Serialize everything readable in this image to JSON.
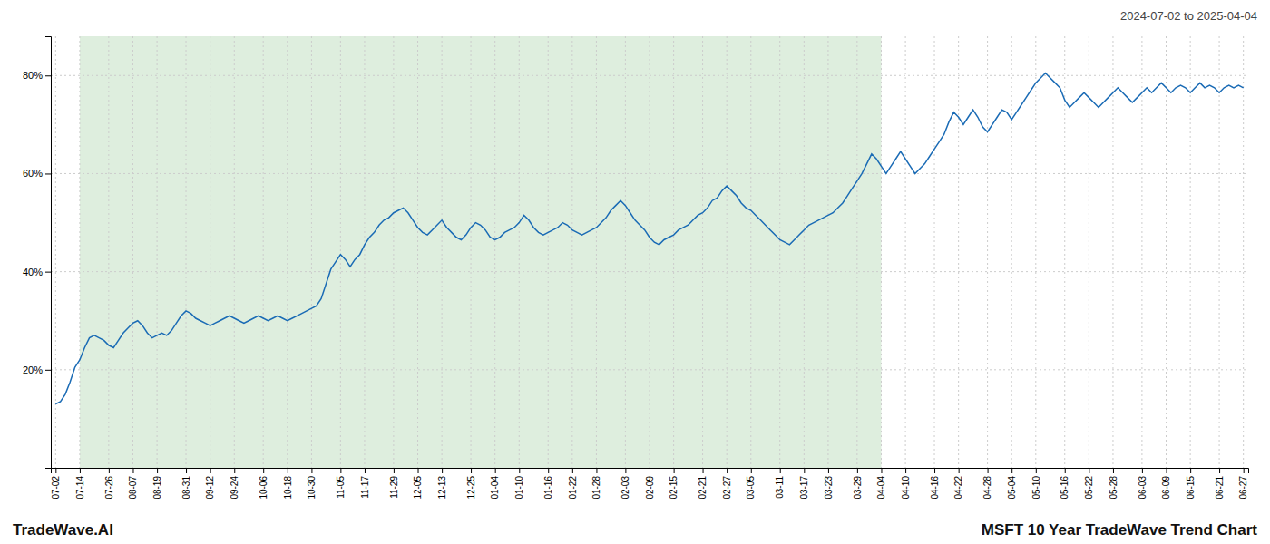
{
  "chart_data": {
    "type": "line",
    "title": "MSFT 10 Year TradeWave Trend Chart",
    "subtitle": "2024-07-02 to 2025-04-04",
    "annotations": [
      "TradeWave.AI"
    ],
    "color": "#1a6bb5",
    "grid": true,
    "ylim": [
      0,
      88
    ],
    "yticks": [
      {
        "value": 20,
        "label": "20%"
      },
      {
        "value": 40,
        "label": "40%"
      },
      {
        "value": 60,
        "label": "60%"
      },
      {
        "value": 80,
        "label": "80%"
      }
    ],
    "shaded_range": {
      "start": "07-14",
      "end": "04-04",
      "color": "#deeede"
    },
    "categories": [
      "07-02",
      null,
      null,
      null,
      null,
      "07-14",
      null,
      null,
      null,
      null,
      null,
      "07-26",
      null,
      null,
      null,
      null,
      "08-07",
      null,
      null,
      null,
      null,
      "08-19",
      null,
      null,
      null,
      null,
      null,
      "08-31",
      null,
      null,
      null,
      null,
      "09-12",
      null,
      null,
      null,
      null,
      "09-24",
      null,
      null,
      null,
      null,
      null,
      "10-06",
      null,
      null,
      null,
      null,
      "10-18",
      null,
      null,
      null,
      null,
      "10-30",
      null,
      null,
      null,
      null,
      null,
      "11-05",
      null,
      null,
      null,
      null,
      "11-17",
      null,
      null,
      null,
      null,
      null,
      "11-29",
      null,
      null,
      null,
      null,
      "12-05",
      null,
      null,
      null,
      null,
      "12-13",
      null,
      null,
      null,
      null,
      null,
      "12-25",
      null,
      null,
      null,
      null,
      "01-04",
      null,
      null,
      null,
      null,
      "01-10",
      null,
      null,
      null,
      null,
      null,
      "01-16",
      null,
      null,
      null,
      null,
      "01-22",
      null,
      null,
      null,
      null,
      "01-28",
      null,
      null,
      null,
      null,
      null,
      "02-03",
      null,
      null,
      null,
      null,
      "02-09",
      null,
      null,
      null,
      null,
      "02-15",
      null,
      null,
      null,
      null,
      null,
      "02-21",
      null,
      null,
      null,
      null,
      "02-27",
      null,
      null,
      null,
      null,
      "03-05",
      null,
      null,
      null,
      null,
      null,
      "03-11",
      null,
      null,
      null,
      null,
      "03-17",
      null,
      null,
      null,
      null,
      "03-23",
      null,
      null,
      null,
      null,
      null,
      "03-29",
      null,
      null,
      null,
      null,
      "04-04",
      null,
      null,
      null,
      null,
      "04-10",
      null,
      null,
      null,
      null,
      null,
      "04-16",
      null,
      null,
      null,
      null,
      "04-22",
      null,
      null,
      null,
      null,
      null,
      "04-28",
      null,
      null,
      null,
      null,
      "05-04",
      null,
      null,
      null,
      null,
      "05-10",
      null,
      null,
      null,
      null,
      null,
      "05-16",
      null,
      null,
      null,
      null,
      "05-22",
      null,
      null,
      null,
      null,
      "05-28",
      null,
      null,
      null,
      null,
      null,
      "06-03",
      null,
      null,
      null,
      null,
      "06-09",
      null,
      null,
      null,
      null,
      "06-15",
      null,
      null,
      null,
      null,
      null,
      "06-21",
      null,
      null,
      null,
      null,
      "06-27"
    ],
    "values": [
      13.0,
      13.5,
      15.0,
      17.5,
      20.5,
      22.0,
      24.5,
      26.5,
      27.0,
      26.5,
      26.0,
      25.0,
      24.5,
      26.0,
      27.5,
      28.5,
      29.5,
      30.0,
      29.0,
      27.5,
      26.5,
      27.0,
      27.5,
      27.0,
      28.0,
      29.5,
      31.0,
      32.0,
      31.5,
      30.5,
      30.0,
      29.5,
      29.0,
      29.5,
      30.0,
      30.5,
      31.0,
      30.5,
      30.0,
      29.5,
      30.0,
      30.5,
      31.0,
      30.5,
      30.0,
      30.5,
      31.0,
      30.5,
      30.0,
      30.5,
      31.0,
      31.5,
      32.0,
      32.5,
      33.0,
      34.5,
      37.5,
      40.5,
      42.0,
      43.5,
      42.5,
      41.0,
      42.5,
      43.5,
      45.5,
      47.0,
      48.0,
      49.5,
      50.5,
      51.0,
      52.0,
      52.5,
      53.0,
      52.0,
      50.5,
      49.0,
      48.0,
      47.5,
      48.5,
      49.5,
      50.5,
      49.0,
      48.0,
      47.0,
      46.5,
      47.5,
      49.0,
      50.0,
      49.5,
      48.5,
      47.0,
      46.5,
      47.0,
      48.0,
      48.5,
      49.0,
      50.0,
      51.5,
      50.5,
      49.0,
      48.0,
      47.5,
      48.0,
      48.5,
      49.0,
      50.0,
      49.5,
      48.5,
      48.0,
      47.5,
      48.0,
      48.5,
      49.0,
      50.0,
      51.0,
      52.5,
      53.5,
      54.5,
      53.5,
      52.0,
      50.5,
      49.5,
      48.5,
      47.0,
      46.0,
      45.5,
      46.5,
      47.0,
      47.5,
      48.5,
      49.0,
      49.5,
      50.5,
      51.5,
      52.0,
      53.0,
      54.5,
      55.0,
      56.5,
      57.5,
      56.5,
      55.5,
      54.0,
      53.0,
      52.5,
      51.5,
      50.5,
      49.5,
      48.5,
      47.5,
      46.5,
      46.0,
      45.5,
      46.5,
      47.5,
      48.5,
      49.5,
      50.0,
      50.5,
      51.0,
      51.5,
      52.0,
      53.0,
      54.0,
      55.5,
      57.0,
      58.5,
      60.0,
      62.0,
      64.0,
      63.0,
      61.5,
      60.0,
      61.5,
      63.0,
      64.5,
      63.0,
      61.5,
      60.0,
      61.0,
      62.0,
      63.5,
      65.0,
      66.5,
      68.0,
      70.5,
      72.5,
      71.5,
      70.0,
      71.5,
      73.0,
      71.5,
      69.5,
      68.5,
      70.0,
      71.5,
      73.0,
      72.5,
      71.0,
      72.5,
      74.0,
      75.5,
      77.0,
      78.5,
      79.5,
      80.5,
      79.5,
      78.5,
      77.5,
      75.0,
      73.5,
      74.5,
      75.5,
      76.5,
      75.5,
      74.5,
      73.5,
      74.5,
      75.5,
      76.5,
      77.5,
      76.5,
      75.5,
      74.5,
      75.5,
      76.5,
      77.5,
      76.5,
      77.5,
      78.5,
      77.5,
      76.5,
      77.5,
      78.0,
      77.5,
      76.5,
      77.5,
      78.5,
      77.5,
      78.0,
      77.5,
      76.5,
      77.5,
      78.0,
      77.5,
      78.0,
      77.5
    ]
  }
}
